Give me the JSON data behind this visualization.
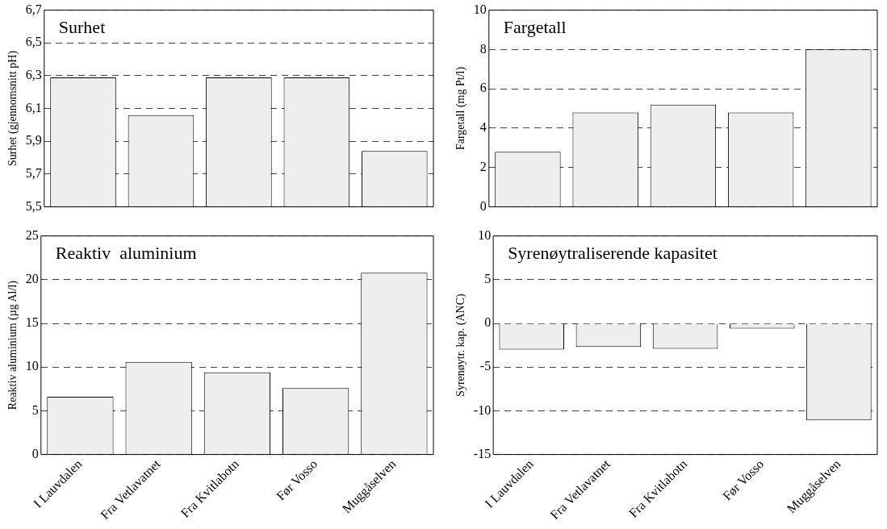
{
  "chart_data": [
    {
      "type": "bar",
      "title": "Surhet",
      "ylabel": "Surhet (gjennomsnitt pH)",
      "categories": [
        null,
        null,
        null,
        null,
        null
      ],
      "values": [
        6.29,
        6.06,
        6.29,
        6.29,
        5.84
      ],
      "color": "#eeeeee",
      "ylim": [
        5.5,
        6.7
      ],
      "yticks": [
        {
          "value": 5.5,
          "label": "5,5"
        },
        {
          "value": 5.7,
          "label": "5,7"
        },
        {
          "value": 5.9,
          "label": "5,9"
        },
        {
          "value": 6.1,
          "label": "6,1"
        },
        {
          "value": 6.3,
          "label": "6,3"
        },
        {
          "value": 6.5,
          "label": "6,5"
        },
        {
          "value": 6.7,
          "label": "6,7"
        }
      ],
      "grid": "y"
    },
    {
      "type": "bar",
      "title": "Fargetall",
      "ylabel": "Fargetall (mg Pt/l)",
      "categories": [
        null,
        null,
        null,
        null,
        null
      ],
      "values": [
        2.8,
        4.8,
        5.2,
        4.8,
        8.0
      ],
      "color": "#eeeeee",
      "ylim": [
        0,
        10
      ],
      "yticks": [
        0,
        2,
        4,
        6,
        8,
        10
      ],
      "grid": "y"
    },
    {
      "type": "bar",
      "title": "Reaktiv  aluminium",
      "ylabel": "Reaktiv aluminium (µg Al/l)",
      "categories": [
        "I Lauvdalen",
        "Fra Vetlavatnet",
        "Fra Kvitlabotn",
        "Før Vosso",
        "Muggåselven"
      ],
      "values": [
        6.6,
        10.6,
        9.4,
        7.6,
        20.8
      ],
      "color": "#eeeeee",
      "ylim": [
        0,
        25
      ],
      "yticks": [
        0,
        5,
        10,
        15,
        20,
        25
      ],
      "grid": "y"
    },
    {
      "type": "bar",
      "title": "Syrenøytraliserende kapasitet",
      "ylabel": "Syrenøytr. kap. (ANC)",
      "categories": [
        "I Lauvdalen",
        "Fra Vetlavatnet",
        "Fra Kvitlabotn",
        "Før Vosso",
        "Muggåselven"
      ],
      "values": [
        -3.0,
        -2.7,
        -2.9,
        -0.6,
        -11.1
      ],
      "color": "#eeeeee",
      "ylim": [
        -15,
        10
      ],
      "yticks": [
        -15,
        -10,
        -5,
        0,
        5,
        10
      ],
      "grid": "y"
    }
  ]
}
